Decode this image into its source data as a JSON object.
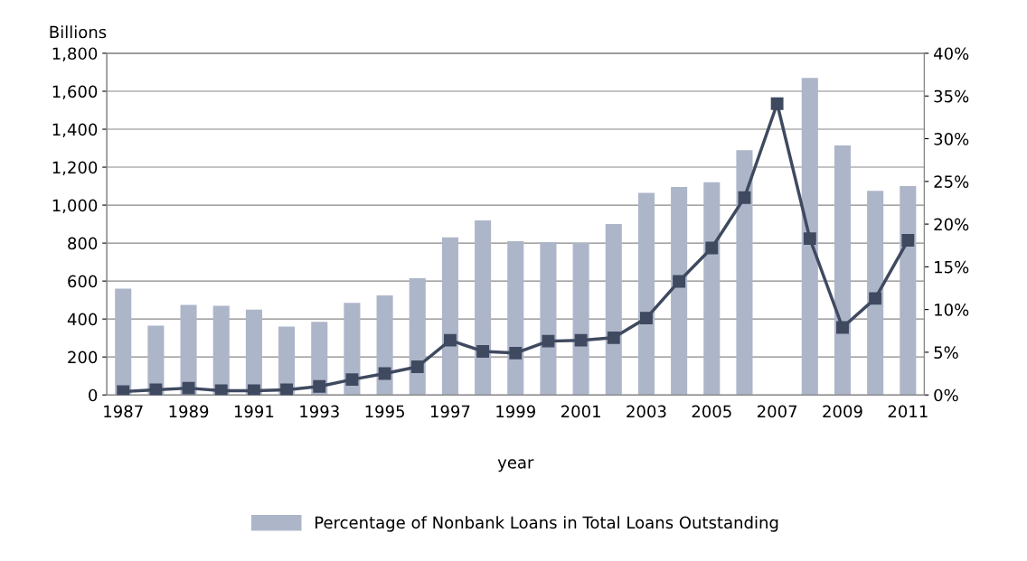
{
  "chart_data": {
    "type": "bar",
    "categories": [
      "1987",
      null,
      "1989",
      null,
      "1991",
      null,
      "1993",
      null,
      "1995",
      null,
      "1997",
      null,
      "1999",
      null,
      "2001",
      null,
      "2003",
      null,
      "2005",
      null,
      "2007",
      null,
      "2009",
      null,
      "2011"
    ],
    "series": [
      {
        "name": "Percentage of Nonbank Loans in Total Loans Outstanding",
        "color": "#adb5c9",
        "values": [
          560,
          365,
          475,
          470,
          450,
          360,
          385,
          485,
          525,
          615,
          830,
          920,
          810,
          805,
          800,
          900,
          1065,
          1095,
          1120,
          1290,
          null,
          1670,
          1315,
          1075,
          1100
        ]
      },
      {
        "type": "line",
        "axis": "y2",
        "color": "#3f4a60",
        "marker": "square",
        "values": [
          0.4,
          0.6,
          0.8,
          0.5,
          0.5,
          0.6,
          1.0,
          1.8,
          2.5,
          3.3,
          6.4,
          5.1,
          4.9,
          6.3,
          6.4,
          6.7,
          9.0,
          13.3,
          17.2,
          23.1,
          34.1,
          18.3,
          7.9,
          11.3,
          18.1
        ]
      }
    ],
    "ylabel": "Billions",
    "xlabel": "year",
    "ylim": [
      0,
      1800
    ],
    "yticks": [
      {
        "value": 0,
        "label": "0"
      },
      {
        "value": 200,
        "label": "200"
      },
      {
        "value": 400,
        "label": "400"
      },
      {
        "value": 600,
        "label": "600"
      },
      {
        "value": 800,
        "label": "800"
      },
      {
        "value": 1000,
        "label": "1,000"
      },
      {
        "value": 1200,
        "label": "1,200"
      },
      {
        "value": 1400,
        "label": "1,400"
      },
      {
        "value": 1600,
        "label": "1,600"
      },
      {
        "value": 1800,
        "label": "1,800"
      }
    ],
    "y2lim": [
      0,
      40
    ],
    "y2ticks": [
      {
        "value": 0,
        "label": "0%"
      },
      {
        "value": 5,
        "label": "5%"
      },
      {
        "value": 10,
        "label": "10%"
      },
      {
        "value": 15,
        "label": "15%"
      },
      {
        "value": 20,
        "label": "20%"
      },
      {
        "value": 25,
        "label": "25%"
      },
      {
        "value": 30,
        "label": "30%"
      },
      {
        "value": 35,
        "label": "35%"
      },
      {
        "value": 40,
        "label": "40%"
      }
    ],
    "grid": "y",
    "legend": "bottom"
  }
}
